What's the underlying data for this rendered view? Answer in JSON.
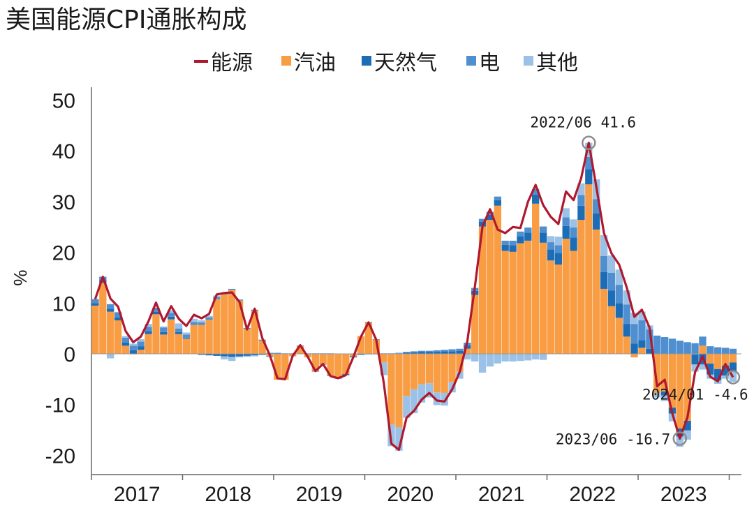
{
  "chart_data": {
    "type": "bar",
    "title": "美国能源CPI通胀构成",
    "ylabel": "%",
    "ylim": [
      -20,
      50
    ],
    "yticks": [
      50,
      40,
      30,
      20,
      10,
      0,
      -10,
      -20
    ],
    "year_labels": [
      "2017",
      "2018",
      "2019",
      "2020",
      "2021",
      "2022",
      "2023"
    ],
    "x": [
      "2017-01",
      "2017-02",
      "2017-03",
      "2017-04",
      "2017-05",
      "2017-06",
      "2017-07",
      "2017-08",
      "2017-09",
      "2017-10",
      "2017-11",
      "2017-12",
      "2018-01",
      "2018-02",
      "2018-03",
      "2018-04",
      "2018-05",
      "2018-06",
      "2018-07",
      "2018-08",
      "2018-09",
      "2018-10",
      "2018-11",
      "2018-12",
      "2019-01",
      "2019-02",
      "2019-03",
      "2019-04",
      "2019-05",
      "2019-06",
      "2019-07",
      "2019-08",
      "2019-09",
      "2019-10",
      "2019-11",
      "2019-12",
      "2020-01",
      "2020-02",
      "2020-03",
      "2020-04",
      "2020-05",
      "2020-06",
      "2020-07",
      "2020-08",
      "2020-09",
      "2020-10",
      "2020-11",
      "2020-12",
      "2021-01",
      "2021-02",
      "2021-03",
      "2021-04",
      "2021-05",
      "2021-06",
      "2021-07",
      "2021-08",
      "2021-09",
      "2021-10",
      "2021-11",
      "2021-12",
      "2022-01",
      "2022-02",
      "2022-03",
      "2022-04",
      "2022-05",
      "2022-06",
      "2022-07",
      "2022-08",
      "2022-09",
      "2022-10",
      "2022-11",
      "2022-12",
      "2023-01",
      "2023-02",
      "2023-03",
      "2023-04",
      "2023-05",
      "2023-06",
      "2023-07",
      "2023-08",
      "2023-09",
      "2023-10",
      "2023-11",
      "2023-12",
      "2024-01"
    ],
    "series": [
      {
        "name": "能源",
        "type": "line",
        "color": "#b0182e",
        "values": [
          10.8,
          15.2,
          10.9,
          9.3,
          4.5,
          2.3,
          3.4,
          6.4,
          10.1,
          6.4,
          9.4,
          6.9,
          5.5,
          7.7,
          7.0,
          7.9,
          11.7,
          12.0,
          12.1,
          10.2,
          4.8,
          8.9,
          3.1,
          -0.3,
          -4.8,
          -5.0,
          -0.4,
          1.7,
          -0.6,
          -3.4,
          -2.0,
          -4.4,
          -4.8,
          -4.2,
          -0.6,
          3.4,
          6.2,
          2.8,
          -5.7,
          -17.7,
          -18.9,
          -12.6,
          -11.2,
          -9.0,
          -7.7,
          -9.2,
          -9.4,
          -7.0,
          -3.6,
          2.4,
          13.2,
          25.1,
          28.5,
          24.5,
          23.8,
          25.0,
          24.8,
          30.0,
          33.3,
          29.3,
          27.0,
          25.6,
          32.0,
          30.3,
          34.6,
          41.6,
          32.9,
          23.8,
          19.8,
          17.6,
          13.1,
          7.3,
          8.7,
          5.2,
          -6.4,
          -5.1,
          -11.7,
          -16.7,
          -12.5,
          -3.6,
          -0.5,
          -4.5,
          -5.4,
          -2.0,
          -4.6
        ]
      },
      {
        "name": "汽油",
        "type": "bar",
        "color": "#f99d45",
        "values": [
          9.5,
          14.0,
          8.3,
          6.6,
          1.6,
          -0.1,
          0.8,
          3.9,
          7.8,
          3.8,
          6.8,
          3.9,
          3.0,
          5.7,
          5.7,
          6.7,
          10.8,
          11.7,
          12.6,
          10.5,
          4.9,
          8.5,
          2.6,
          -0.5,
          -5.1,
          -5.1,
          -0.5,
          1.5,
          -0.7,
          -3.4,
          -2.0,
          -4.3,
          -4.7,
          -4.0,
          -0.5,
          3.5,
          6.2,
          2.8,
          -1.7,
          -13.9,
          -14.5,
          -8.3,
          -7.0,
          -6.0,
          -5.8,
          -7.6,
          -7.7,
          -5.6,
          -3.5,
          1.0,
          11.6,
          25.1,
          26.4,
          29.2,
          20.3,
          20.1,
          21.8,
          22.3,
          29.6,
          21.9,
          18.4,
          17.6,
          22.7,
          20.3,
          26.4,
          33.4,
          24.5,
          12.8,
          9.4,
          7.1,
          3.4,
          -0.7,
          1.2,
          0.0,
          -7.7,
          -7.4,
          -10.6,
          -14.7,
          -13.2,
          -0.1,
          1.6,
          -1.9,
          -3.0,
          -2.3,
          -1.7
        ]
      },
      {
        "name": "天然气",
        "type": "bar",
        "color": "#1d6cb6",
        "values": [
          0.5,
          0.5,
          0.6,
          0.6,
          0.6,
          0.7,
          0.7,
          0.6,
          0.5,
          0.5,
          0.5,
          0.4,
          0.2,
          0.0,
          -0.2,
          -0.3,
          -0.4,
          -0.5,
          -0.6,
          -0.5,
          -0.4,
          -0.3,
          -0.2,
          -0.1,
          0.0,
          0.0,
          0.0,
          0.0,
          0.0,
          -0.1,
          -0.1,
          -0.1,
          -0.2,
          -0.2,
          -0.2,
          -0.2,
          -0.1,
          -0.1,
          0.0,
          0.0,
          0.1,
          0.2,
          0.3,
          0.4,
          0.4,
          0.4,
          0.5,
          0.5,
          0.6,
          0.7,
          0.8,
          0.9,
          1.0,
          1.1,
          1.2,
          1.3,
          1.4,
          1.6,
          1.8,
          2.0,
          2.2,
          2.3,
          2.5,
          2.6,
          2.8,
          3.0,
          3.2,
          3.3,
          3.1,
          2.9,
          2.5,
          2.0,
          1.5,
          1.0,
          0.0,
          -0.8,
          -1.2,
          -1.6,
          -1.9,
          -2.0,
          -2.1,
          -2.2,
          -2.2,
          -2.0,
          -1.8
        ]
      },
      {
        "name": "电",
        "type": "bar",
        "color": "#4f8fd0",
        "values": [
          0.8,
          0.7,
          0.9,
          1.0,
          1.0,
          0.9,
          0.9,
          0.8,
          0.8,
          0.9,
          0.8,
          0.7,
          0.6,
          0.6,
          0.5,
          0.5,
          0.4,
          0.3,
          0.2,
          0.2,
          0.2,
          0.2,
          0.2,
          0.2,
          0.2,
          0.1,
          0.1,
          0.1,
          0.1,
          0.1,
          0.1,
          0.1,
          0.0,
          0.0,
          0.0,
          0.0,
          0.1,
          0.1,
          0.1,
          0.1,
          0.1,
          0.2,
          0.2,
          0.2,
          0.2,
          0.3,
          0.3,
          0.4,
          0.4,
          0.5,
          0.6,
          0.6,
          0.6,
          0.7,
          0.8,
          0.9,
          0.9,
          1.0,
          1.1,
          1.2,
          1.4,
          1.5,
          1.7,
          2.0,
          2.1,
          2.4,
          2.8,
          3.2,
          3.5,
          3.6,
          3.8,
          3.9,
          3.9,
          3.8,
          3.6,
          3.3,
          3.0,
          2.6,
          2.3,
          2.1,
          1.8,
          1.5,
          1.3,
          1.2,
          1.0
        ]
      },
      {
        "name": "其他",
        "type": "bar",
        "color": "#9bc2e6",
        "values": [
          0.0,
          0.0,
          -0.9,
          0.0,
          0.3,
          0.4,
          0.5,
          0.6,
          0.0,
          0.2,
          0.5,
          1.0,
          0.4,
          0.6,
          0.4,
          0.3,
          0.3,
          -0.6,
          -0.8,
          -0.2,
          -0.2,
          -0.2,
          0.0,
          0.0,
          0.0,
          0.0,
          0.0,
          0.1,
          0.0,
          0.0,
          0.0,
          0.0,
          0.0,
          0.0,
          0.0,
          0.0,
          0.0,
          0.0,
          -2.5,
          -4.3,
          -4.6,
          -4.3,
          -4.7,
          -3.6,
          -2.8,
          -2.5,
          -2.5,
          -2.0,
          -1.4,
          -1.1,
          -1.5,
          -3.7,
          -2.5,
          -1.9,
          -1.5,
          -1.5,
          -1.4,
          -1.3,
          -1.1,
          -1.2,
          1.2,
          1.7,
          1.8,
          1.6,
          2.3,
          2.8,
          3.9,
          4.1,
          3.4,
          3.0,
          2.8,
          2.2,
          1.7,
          0.8,
          -0.9,
          -1.1,
          -1.5,
          -2.0,
          -1.8,
          -1.4,
          -1.0,
          -0.8,
          -0.7,
          -0.6,
          -2.0
        ]
      }
    ],
    "annotations": [
      {
        "x": "2022-06",
        "y": 41.6,
        "text": "2022/06 41.6"
      },
      {
        "x": "2023-06",
        "y": -16.7,
        "text": "2023/06 -16.7"
      },
      {
        "x": "2024-01",
        "y": -4.6,
        "text": "2024/01 -4.6"
      }
    ]
  }
}
